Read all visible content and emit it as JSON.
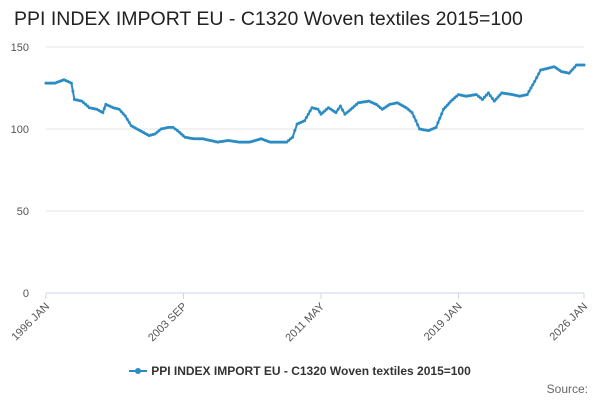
{
  "colors": {
    "series": "#2b8cc4",
    "grid": "#e6e6e6",
    "axis": "#ccd6eb"
  },
  "source_label": "Source:",
  "chart_data": {
    "type": "line",
    "title": "PPI INDEX IMPORT EU - C1320 Woven textiles 2015=100",
    "xlabel": "",
    "ylabel": "",
    "ylim": [
      0,
      150
    ],
    "y_ticks": [
      0,
      50,
      100,
      150
    ],
    "x_range": [
      "1996-01",
      "2026-01"
    ],
    "x_ticks": [
      {
        "label": "1996 JAN",
        "date": "1996-01"
      },
      {
        "label": "2003 SEP",
        "date": "2003-09"
      },
      {
        "label": "2011 MAY",
        "date": "2011-05"
      },
      {
        "label": "2019 JAN",
        "date": "2019-01"
      },
      {
        "label": "2026 JAN",
        "date": "2026-01"
      }
    ],
    "grid": true,
    "legend_position": "bottom",
    "series": [
      {
        "name": "PPI INDEX IMPORT EU - C1320 Woven textiles 2015=100",
        "points": [
          [
            "1996-01",
            128
          ],
          [
            "1996-07",
            128
          ],
          [
            "1997-01",
            130
          ],
          [
            "1997-06",
            128
          ],
          [
            "1997-08",
            118
          ],
          [
            "1998-01",
            117
          ],
          [
            "1998-06",
            113
          ],
          [
            "1998-11",
            112
          ],
          [
            "1999-03",
            110
          ],
          [
            "1999-05",
            115
          ],
          [
            "1999-10",
            113
          ],
          [
            "2000-02",
            112
          ],
          [
            "2000-06",
            108
          ],
          [
            "2000-10",
            102
          ],
          [
            "2001-04",
            99
          ],
          [
            "2001-10",
            96
          ],
          [
            "2002-02",
            97
          ],
          [
            "2002-06",
            100
          ],
          [
            "2002-11",
            101
          ],
          [
            "2003-02",
            101
          ],
          [
            "2003-05",
            99
          ],
          [
            "2003-10",
            95
          ],
          [
            "2004-04",
            94
          ],
          [
            "2004-10",
            94
          ],
          [
            "2005-03",
            93
          ],
          [
            "2005-08",
            92
          ],
          [
            "2006-03",
            93
          ],
          [
            "2006-10",
            92
          ],
          [
            "2007-05",
            92
          ],
          [
            "2008-01",
            94
          ],
          [
            "2008-07",
            92
          ],
          [
            "2009-01",
            92
          ],
          [
            "2009-06",
            92
          ],
          [
            "2009-10",
            95
          ],
          [
            "2010-01",
            103
          ],
          [
            "2010-06",
            105
          ],
          [
            "2010-11",
            113
          ],
          [
            "2011-03",
            112
          ],
          [
            "2011-05",
            109
          ],
          [
            "2011-10",
            113
          ],
          [
            "2012-03",
            110
          ],
          [
            "2012-06",
            114
          ],
          [
            "2012-09",
            109
          ],
          [
            "2013-01",
            112
          ],
          [
            "2013-06",
            116
          ],
          [
            "2014-01",
            117
          ],
          [
            "2014-06",
            115
          ],
          [
            "2014-10",
            112
          ],
          [
            "2015-03",
            115
          ],
          [
            "2015-08",
            116
          ],
          [
            "2016-02",
            113
          ],
          [
            "2016-06",
            110
          ],
          [
            "2016-11",
            100
          ],
          [
            "2017-05",
            99
          ],
          [
            "2017-10",
            101
          ],
          [
            "2018-03",
            112
          ],
          [
            "2018-08",
            117
          ],
          [
            "2019-01",
            121
          ],
          [
            "2019-06",
            120
          ],
          [
            "2020-01",
            121
          ],
          [
            "2020-05",
            118
          ],
          [
            "2020-09",
            122
          ],
          [
            "2021-01",
            117
          ],
          [
            "2021-06",
            122
          ],
          [
            "2022-01",
            121
          ],
          [
            "2022-06",
            120
          ],
          [
            "2022-11",
            121
          ],
          [
            "2023-04",
            129
          ],
          [
            "2023-08",
            136
          ],
          [
            "2024-01",
            137
          ],
          [
            "2024-05",
            138
          ],
          [
            "2024-10",
            135
          ],
          [
            "2025-03",
            134
          ],
          [
            "2025-08",
            139
          ],
          [
            "2026-01",
            139
          ]
        ]
      }
    ]
  }
}
